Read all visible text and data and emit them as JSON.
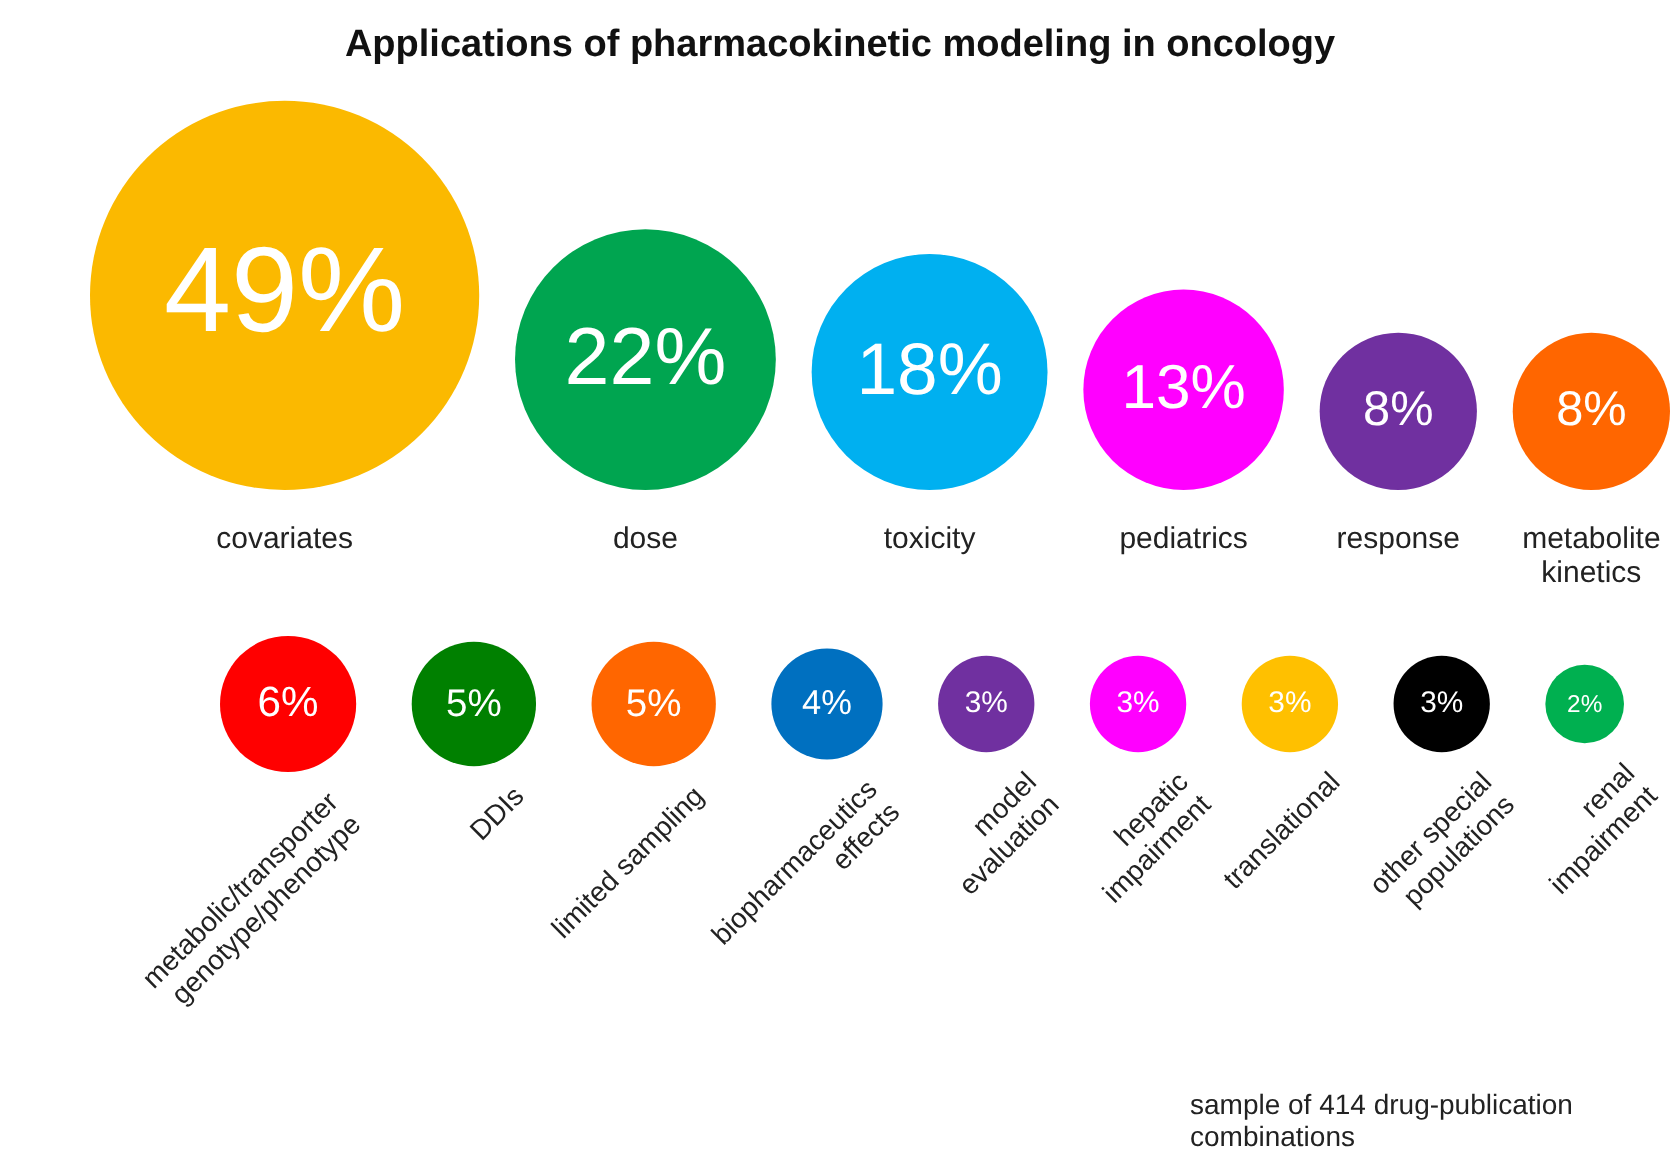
{
  "chart_data": {
    "type": "other",
    "title": "Applications of pharmacokinetic modeling in oncology",
    "categories": [
      "covariates",
      "dose",
      "toxicity",
      "pediatrics",
      "response",
      "metabolite\nkinetics",
      "metabolic/transporter\ngenotype/phenotype",
      "DDIs",
      "limited sampling",
      "biopharmaceutics\neffects",
      "model\nevaluation",
      "hepatic\nimpairment",
      "translational",
      "other special\npopulations",
      "renal\nimpairment"
    ],
    "values": [
      49,
      22,
      18,
      13,
      8,
      8,
      6,
      5,
      5,
      4,
      3,
      3,
      3,
      3,
      2
    ],
    "value_labels": [
      "49%",
      "22%",
      "18%",
      "13%",
      "8%",
      "8%",
      "6%",
      "5%",
      "5%",
      "4%",
      "3%",
      "3%",
      "3%",
      "3%",
      "2%"
    ],
    "colors": [
      "#fbb900",
      "#00a550",
      "#00b0f0",
      "#ff00ff",
      "#7030a0",
      "#ff6600",
      "#ff0000",
      "#008000",
      "#ff6600",
      "#0070c0",
      "#7030a0",
      "#ff00ff",
      "#ffc000",
      "#000000",
      "#00b050"
    ],
    "annotations": [
      "sample of 414 drug-publication combinations"
    ]
  }
}
